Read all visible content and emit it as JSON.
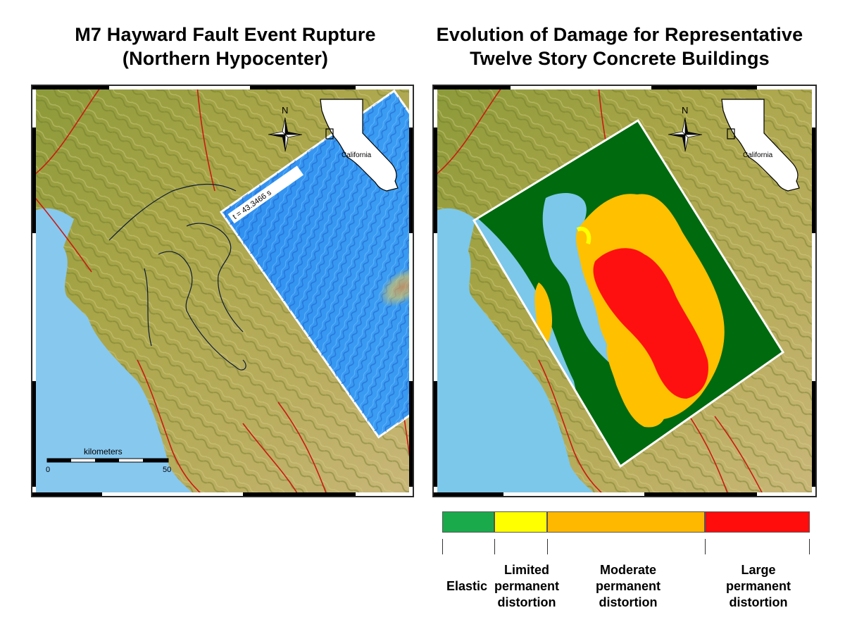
{
  "titles": {
    "left_line1": "M7 Hayward Fault Event Rupture",
    "left_line2": "(Northern Hypocenter)",
    "right_line1": "Evolution of Damage for Representative",
    "right_line2": "Twelve Story Concrete Buildings"
  },
  "left_map": {
    "time_label": "t = 43.3466 s",
    "north_label": "N",
    "inset_label": "California",
    "scale_title": "kilometers",
    "scale_min": "0",
    "scale_max": "50"
  },
  "right_map": {
    "north_label": "N",
    "inset_label": "California"
  },
  "legend": {
    "categories": [
      {
        "label": "Elastic",
        "color": "#1aaa4c"
      },
      {
        "label": "Limited permanent distortion",
        "color": "#ffff00"
      },
      {
        "label": "Moderate permanent distortion",
        "color": "#ffb800"
      },
      {
        "label": "Large permanent distortion",
        "color": "#ff0c0c"
      }
    ],
    "elastic": "Elastic",
    "limited_1": "Limited",
    "limited_2": "permanent",
    "limited_3": "distortion",
    "moderate_1": "Moderate",
    "moderate_2": "permanent",
    "moderate_3": "distortion",
    "large_1": "Large",
    "large_2": "permanent",
    "large_3": "distortion"
  },
  "colors": {
    "ocean": "#87c8ef",
    "terrain": "#9a9a3c",
    "fault": "#cc1a10",
    "elastic_zone": "#006a0f",
    "bay": "#7cc8ea"
  }
}
